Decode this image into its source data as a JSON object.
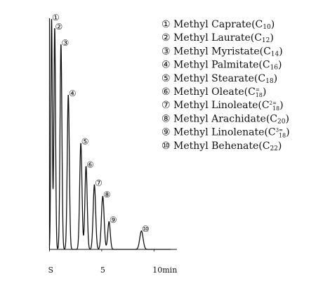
{
  "chart_data": {
    "type": "line",
    "title": "",
    "xlabel": "",
    "ylabel": "",
    "xlim": [
      -0.3,
      12.2
    ],
    "ylim": [
      0,
      100
    ],
    "x_ticks": [
      {
        "value": 0,
        "label": "S"
      },
      {
        "value": 5,
        "label": "5"
      },
      {
        "value": 10,
        "label": "10min"
      }
    ],
    "peaks": [
      {
        "number": "①",
        "name": "Methyl Caprate",
        "formula": "C",
        "sub": "10",
        "sup": "",
        "retention_min": 0.2,
        "height": 100,
        "width": 0.07
      },
      {
        "number": "②",
        "name": "Methyl Laurate",
        "formula": "C",
        "sub": "12",
        "sup": "",
        "retention_min": 0.5,
        "height": 96,
        "width": 0.08
      },
      {
        "number": "③",
        "name": "Methyl Myristate",
        "formula": "C",
        "sub": "14",
        "sup": "",
        "retention_min": 1.1,
        "height": 89,
        "width": 0.09
      },
      {
        "number": "④",
        "name": "Methyl Palmitate",
        "formula": "C",
        "sub": "16",
        "sup": "",
        "retention_min": 1.8,
        "height": 67,
        "width": 0.1
      },
      {
        "number": "⑤",
        "name": "Methyl Stearate",
        "formula": "C",
        "sub": "18",
        "sup": "",
        "retention_min": 3.0,
        "height": 46,
        "width": 0.11
      },
      {
        "number": "⑥",
        "name": "Methyl Oleate",
        "formula": "C",
        "sub": "18",
        "sup": "=",
        "retention_min": 3.5,
        "height": 36,
        "width": 0.11
      },
      {
        "number": "⑦",
        "name": "Methyl Linoleate",
        "formula": "C",
        "sub": "18",
        "sup": "2=",
        "retention_min": 4.3,
        "height": 28,
        "width": 0.12
      },
      {
        "number": "⑧",
        "name": "Methyl Arachidate",
        "formula": "C",
        "sub": "20",
        "sup": "",
        "retention_min": 5.1,
        "height": 23,
        "width": 0.13
      },
      {
        "number": "⑨",
        "name": "Methyl Linolenate",
        "formula": "C",
        "sub": "18",
        "sup": "3=",
        "retention_min": 5.7,
        "height": 12,
        "width": 0.12
      },
      {
        "number": "⑩",
        "name": "Methyl Behenate",
        "formula": "C",
        "sub": "22",
        "sup": "",
        "retention_min": 8.8,
        "height": 8,
        "width": 0.16
      }
    ],
    "legend_position": "top-right",
    "grid": false
  }
}
